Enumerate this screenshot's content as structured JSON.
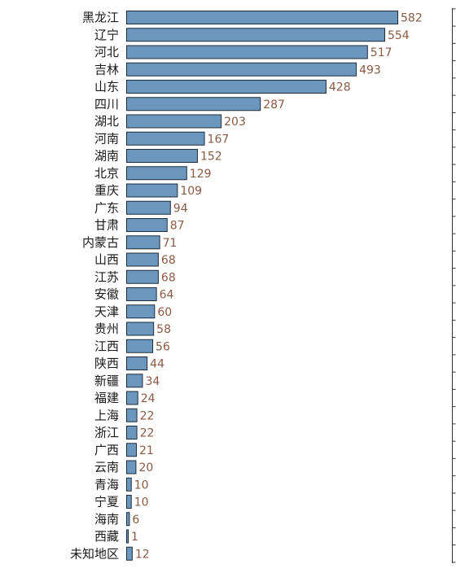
{
  "colors": {
    "bar_fill": "#6b96bd",
    "bar_stroke": "#1f2d3a",
    "value_text": "#8a5a44",
    "category_text": "#1a1a1a",
    "axis": "#333333"
  },
  "chart_data": {
    "type": "bar",
    "orientation": "horizontal",
    "title": "",
    "xlabel": "",
    "ylabel": "",
    "xlim": [
      0,
      582
    ],
    "grid": false,
    "legend": "none",
    "categories": [
      "黑龙江",
      "辽宁",
      "河北",
      "吉林",
      "山东",
      "四川",
      "湖北",
      "河南",
      "湖南",
      "北京",
      "重庆",
      "广东",
      "甘肃",
      "内蒙古",
      "山西",
      "江苏",
      "安徽",
      "天津",
      "贵州",
      "江西",
      "陕西",
      "新疆",
      "福建",
      "上海",
      "浙江",
      "广西",
      "云南",
      "青海",
      "宁夏",
      "海南",
      "西藏",
      "未知地区"
    ],
    "values": [
      582,
      554,
      517,
      493,
      428,
      287,
      203,
      167,
      152,
      129,
      109,
      94,
      87,
      71,
      68,
      68,
      64,
      60,
      58,
      56,
      44,
      34,
      24,
      22,
      22,
      21,
      20,
      10,
      10,
      6,
      1,
      12
    ]
  }
}
